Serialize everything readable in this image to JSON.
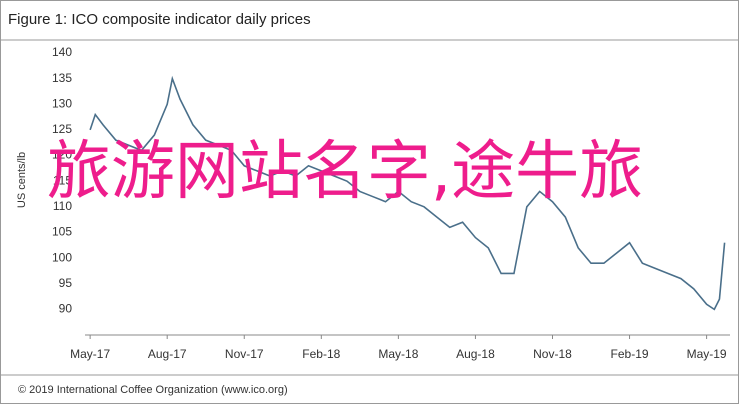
{
  "chart_data": {
    "type": "line",
    "title": "Figure 1: ICO composite indicator daily prices",
    "ylabel": "US cents/lb",
    "source": "© 2019 International Coffee Organization (www.ico.org)",
    "annotation": "旅游网站名字,途牛旅",
    "x": [
      0,
      0.2,
      0.5,
      1,
      1.5,
      2,
      2.5,
      3,
      3.2,
      3.5,
      4,
      4.5,
      5,
      5.5,
      6,
      6.5,
      7,
      7.5,
      8,
      8.5,
      9,
      9.5,
      10,
      10.5,
      11,
      11.5,
      12,
      12.5,
      13,
      13.5,
      14,
      14.5,
      15,
      15.5,
      16,
      16.5,
      17,
      17.5,
      18,
      18.5,
      19,
      19.5,
      20,
      20.5,
      21,
      21.5,
      22,
      22.5,
      23,
      23.5,
      24,
      24.3,
      24.5,
      24.7
    ],
    "series": [
      {
        "name": "ICO composite indicator",
        "color": "#4a6f8a",
        "values": [
          125,
          128,
          126,
          123,
          122,
          121,
          124,
          130,
          135,
          131,
          126,
          123,
          122,
          121,
          118,
          117,
          116,
          117,
          116,
          118,
          117,
          116,
          115,
          113,
          112,
          111,
          113,
          111,
          110,
          108,
          106,
          107,
          104,
          102,
          97,
          97,
          110,
          113,
          111,
          108,
          102,
          99,
          99,
          101,
          103,
          99,
          98,
          97,
          96,
          94,
          91,
          90,
          92,
          103
        ]
      }
    ],
    "xlim": [
      -0.2,
      25.3
    ],
    "xticks": [
      {
        "value": 0,
        "label": "May-17"
      },
      {
        "value": 3,
        "label": "Aug-17"
      },
      {
        "value": 6,
        "label": "Nov-17"
      },
      {
        "value": 9,
        "label": "Feb-18"
      },
      {
        "value": 12,
        "label": "May-18"
      },
      {
        "value": 15,
        "label": "Aug-18"
      },
      {
        "value": 18,
        "label": "Nov-18"
      },
      {
        "value": 21,
        "label": "Feb-19"
      },
      {
        "value": 24,
        "label": "May-19"
      }
    ],
    "ylim": [
      85,
      140
    ],
    "yticks": [
      90,
      95,
      100,
      105,
      110,
      115,
      120,
      125,
      130,
      135,
      140
    ],
    "grid": false
  }
}
